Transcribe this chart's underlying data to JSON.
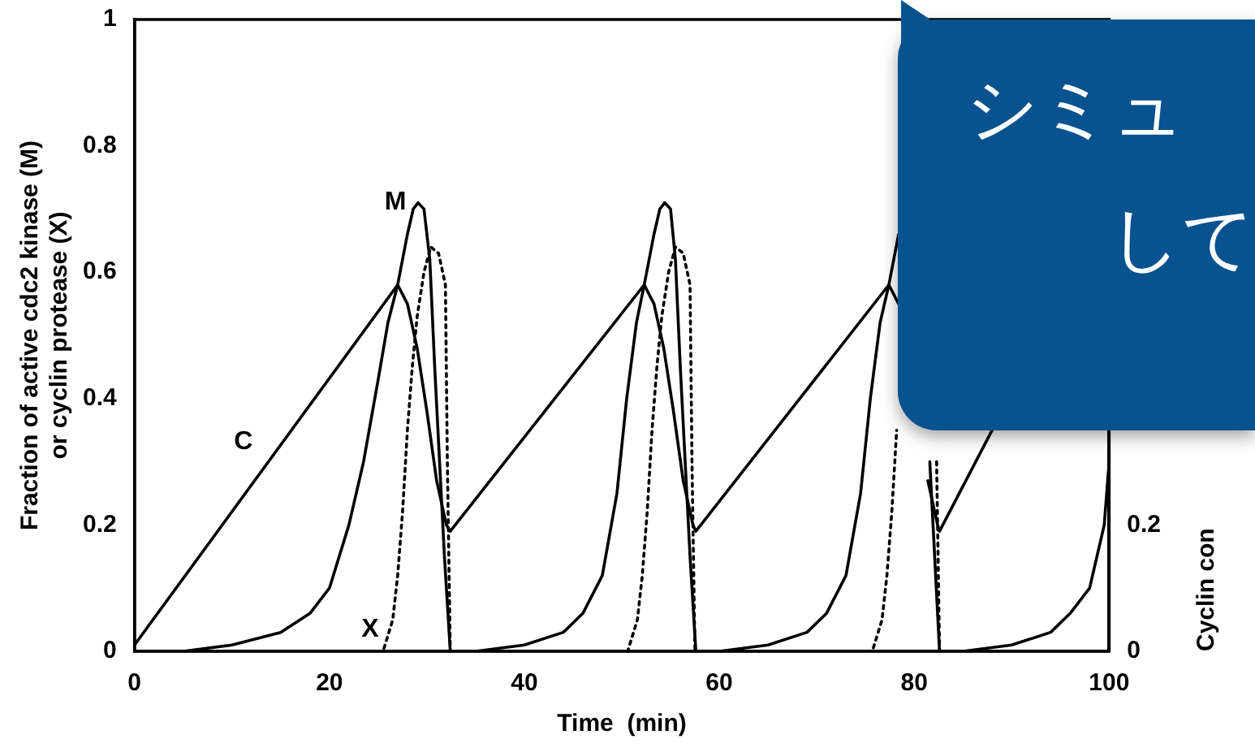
{
  "chart_data": {
    "type": "line",
    "xlabel": "Time  (min)",
    "ylabel": "Fraction of active cdc2 kinase (M)\nor cyclin protease (X)",
    "y2label": "Cyclin con",
    "xlim": [
      0,
      100
    ],
    "xticks": [
      0,
      20,
      40,
      60,
      80,
      100
    ],
    "ylim": [
      0,
      1
    ],
    "yticks": [
      0,
      0.2,
      0.4,
      0.6,
      0.8,
      1
    ],
    "y2lim": [
      0,
      1
    ],
    "y2ticks": [
      0,
      0.2
    ],
    "grid": false,
    "legend": false,
    "marker": "none",
    "annotations": [
      "シミュ",
      "して"
    ],
    "series": [
      {
        "name": "C",
        "color": "#000000",
        "axis": "y2",
        "line_style": "solid",
        "x": [
          0,
          27,
          28,
          29,
          30,
          31,
          32,
          32.4,
          52.3,
          53.3,
          54.3,
          55.3,
          56.3,
          57.3,
          57.6,
          77.4,
          78.4,
          79.4,
          80.4,
          81.4,
          82.4,
          82.6,
          88
        ],
        "values": [
          0.01,
          0.58,
          0.55,
          0.48,
          0.38,
          0.27,
          0.2,
          0.19,
          0.58,
          0.55,
          0.48,
          0.38,
          0.27,
          0.2,
          0.19,
          0.58,
          0.55,
          null,
          null,
          0.27,
          0.2,
          0.19,
          0.35
        ]
      },
      {
        "name": "M",
        "color": "#000000",
        "line_style": "solid",
        "x": [
          0,
          5,
          10,
          15,
          18,
          20,
          22,
          23.5,
          25,
          26,
          27,
          28,
          28.6,
          29.1,
          29.7,
          30.3,
          30.8,
          31.3,
          31.8,
          32.4,
          35,
          40,
          44,
          46,
          48,
          49.5,
          50.5,
          51.5,
          52.3,
          53.3,
          53.9,
          54.4,
          55,
          55.5,
          56,
          56.5,
          57,
          57.6,
          60,
          65,
          69,
          71,
          73,
          74.5,
          75.5,
          76.5,
          77.4,
          78.4,
          79,
          79.5,
          80.1,
          80.6,
          81.1,
          81.6,
          82.1,
          82.6,
          85,
          90,
          94,
          96,
          98,
          99.5,
          100
        ],
        "values": [
          0,
          0,
          0.01,
          0.03,
          0.06,
          0.1,
          0.2,
          0.3,
          0.43,
          0.52,
          0.58,
          0.66,
          0.7,
          0.71,
          0.7,
          0.62,
          0.45,
          0.3,
          0.15,
          0,
          0,
          0.01,
          0.03,
          0.06,
          0.12,
          0.25,
          0.4,
          0.52,
          0.58,
          0.66,
          0.7,
          0.71,
          0.7,
          0.62,
          0.45,
          0.3,
          0.15,
          0,
          0,
          0.01,
          0.03,
          0.06,
          0.12,
          0.25,
          0.4,
          0.52,
          0.58,
          0.66,
          null,
          null,
          null,
          null,
          null,
          0.3,
          0.15,
          0,
          0,
          0.01,
          0.03,
          0.06,
          0.1,
          0.2,
          0.3
        ]
      },
      {
        "name": "X",
        "color": "#000000",
        "line_style": "dotted",
        "x": [
          0,
          25.5,
          26.5,
          27,
          27.5,
          28,
          28.5,
          29,
          29.7,
          30.4,
          31.2,
          31.9,
          32.1,
          32.4,
          50.6,
          51.6,
          52.1,
          52.6,
          53.1,
          53.6,
          54.1,
          54.8,
          55.5,
          56.3,
          57,
          57.2,
          57.5,
          75.7,
          76.7,
          77.2,
          77.7,
          78.2,
          78.7,
          79.2,
          79.9,
          80.6,
          81.4,
          82.1,
          82.3,
          82.6,
          100
        ],
        "values": [
          0,
          0,
          0.05,
          0.12,
          0.22,
          0.35,
          0.45,
          0.53,
          0.6,
          0.64,
          0.63,
          0.58,
          0.3,
          0,
          0,
          0.05,
          0.12,
          0.22,
          0.35,
          0.45,
          0.53,
          0.6,
          0.64,
          0.63,
          0.58,
          0.3,
          0,
          0,
          0.05,
          0.12,
          0.22,
          0.35,
          null,
          null,
          null,
          null,
          null,
          null,
          0.3,
          0,
          0
        ]
      }
    ]
  }
}
